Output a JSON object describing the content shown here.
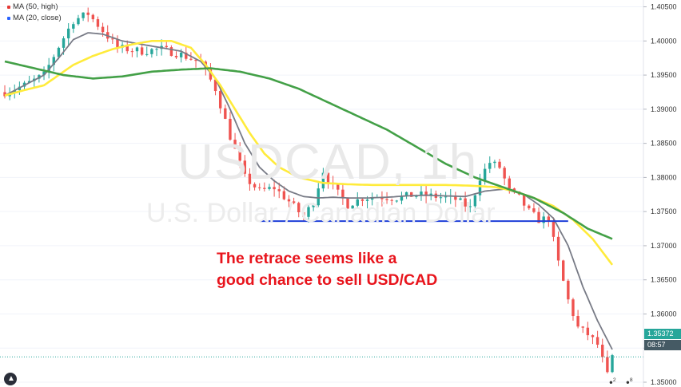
{
  "legend": {
    "items": [
      {
        "label": "MA (50, high)",
        "color": "#e53935"
      },
      {
        "label": "MA (20, close)",
        "color": "#2962ff"
      }
    ]
  },
  "watermark": {
    "symbol": "USDCAD, 1h",
    "description": "U.S. Dollar / Canadian Dollar"
  },
  "annotation": {
    "line1": "The retrace seems like a",
    "line2": "good chance to sell USD/CAD"
  },
  "price_tags": {
    "last_price": "1.35372",
    "countdown": "08:57"
  },
  "notifications": {
    "a": "2",
    "b": "8"
  },
  "colors": {
    "up": "#26a69a",
    "down": "#ef5350",
    "ma_gray": "#787b86",
    "ma_yellow": "#ffeb3b",
    "ma_green": "#43a047",
    "support_line": "#1e3fd8",
    "annotation": "#e8141c",
    "last_price_tag": "#26a69a",
    "countdown_tag": "#455a64"
  },
  "chart_data": {
    "type": "line",
    "title": "",
    "ylim": [
      1.3493,
      1.406
    ],
    "y_ticks": [
      "1.40500",
      "1.40000",
      "1.39500",
      "1.39000",
      "1.38500",
      "1.38000",
      "1.37500",
      "1.37000",
      "1.36500",
      "1.36000",
      "1.35500",
      "1.35000"
    ],
    "y_tick_values": [
      1.405,
      1.4,
      1.395,
      1.39,
      1.385,
      1.38,
      1.375,
      1.37,
      1.365,
      1.36,
      1.355,
      1.35
    ],
    "last_price": 1.35372,
    "support_level": 1.3736,
    "support_x_range": [
      52,
      115
    ],
    "x_count": 125,
    "price_anchors": [
      [
        0,
        1.3925
      ],
      [
        4,
        1.3935
      ],
      [
        8,
        1.395
      ],
      [
        11,
        1.3992
      ],
      [
        14,
        1.403
      ],
      [
        17,
        1.404
      ],
      [
        20,
        1.4015
      ],
      [
        23,
        1.399
      ],
      [
        28,
        1.3985
      ],
      [
        32,
        1.3988
      ],
      [
        36,
        1.398
      ],
      [
        40,
        1.3968
      ],
      [
        43,
        1.393
      ],
      [
        46,
        1.386
      ],
      [
        49,
        1.38
      ],
      [
        52,
        1.378
      ],
      [
        55,
        1.3785
      ],
      [
        58,
        1.3765
      ],
      [
        61,
        1.3742
      ],
      [
        63,
        1.3765
      ],
      [
        65,
        1.381
      ],
      [
        67,
        1.3785
      ],
      [
        70,
        1.376
      ],
      [
        73,
        1.377
      ],
      [
        76,
        1.3772
      ],
      [
        80,
        1.377
      ],
      [
        84,
        1.3775
      ],
      [
        88,
        1.3772
      ],
      [
        92,
        1.3768
      ],
      [
        95,
        1.3755
      ],
      [
        97,
        1.38
      ],
      [
        99,
        1.3822
      ],
      [
        101,
        1.3815
      ],
      [
        103,
        1.378
      ],
      [
        105,
        1.377
      ],
      [
        107,
        1.375
      ],
      [
        109,
        1.3738
      ],
      [
        111,
        1.374
      ],
      [
        113,
        1.3675
      ],
      [
        115,
        1.362
      ],
      [
        117,
        1.358
      ],
      [
        119,
        1.357
      ],
      [
        121,
        1.3555
      ],
      [
        123,
        1.351
      ],
      [
        124,
        1.3537
      ]
    ],
    "series": [
      {
        "name": "MA (20, close)",
        "color": "#787b86",
        "points": [
          [
            0,
            1.392
          ],
          [
            4,
            1.3935
          ],
          [
            8,
            1.395
          ],
          [
            11,
            1.3975
          ],
          [
            14,
            1.4002
          ],
          [
            17,
            1.4012
          ],
          [
            20,
            1.401
          ],
          [
            24,
            1.4
          ],
          [
            28,
            1.3995
          ],
          [
            32,
            1.399
          ],
          [
            36,
            1.3985
          ],
          [
            40,
            1.397
          ],
          [
            43,
            1.3945
          ],
          [
            46,
            1.39
          ],
          [
            49,
            1.385
          ],
          [
            52,
            1.3815
          ],
          [
            55,
            1.3795
          ],
          [
            58,
            1.378
          ],
          [
            61,
            1.3772
          ],
          [
            64,
            1.377
          ],
          [
            67,
            1.3771
          ],
          [
            70,
            1.377
          ],
          [
            74,
            1.377
          ],
          [
            78,
            1.3771
          ],
          [
            82,
            1.3773
          ],
          [
            86,
            1.3774
          ],
          [
            90,
            1.3773
          ],
          [
            94,
            1.3772
          ],
          [
            98,
            1.378
          ],
          [
            102,
            1.3783
          ],
          [
            106,
            1.3775
          ],
          [
            109,
            1.376
          ],
          [
            112,
            1.374
          ],
          [
            115,
            1.37
          ],
          [
            118,
            1.364
          ],
          [
            121,
            1.359
          ],
          [
            124,
            1.3548
          ]
        ]
      },
      {
        "name": "MA (50, high)",
        "color": "#ffeb3b",
        "points": [
          [
            0,
            1.392
          ],
          [
            4,
            1.3928
          ],
          [
            8,
            1.3935
          ],
          [
            11,
            1.395
          ],
          [
            14,
            1.3965
          ],
          [
            18,
            1.3978
          ],
          [
            22,
            1.3988
          ],
          [
            26,
            1.3995
          ],
          [
            30,
            1.4
          ],
          [
            34,
            1.4
          ],
          [
            38,
            1.399
          ],
          [
            41,
            1.3965
          ],
          [
            44,
            1.3935
          ],
          [
            47,
            1.39
          ],
          [
            50,
            1.3865
          ],
          [
            53,
            1.3835
          ],
          [
            56,
            1.3815
          ],
          [
            60,
            1.38
          ],
          [
            65,
            1.3792
          ],
          [
            70,
            1.379
          ],
          [
            75,
            1.3789
          ],
          [
            80,
            1.3789
          ],
          [
            85,
            1.3789
          ],
          [
            90,
            1.3789
          ],
          [
            95,
            1.3788
          ],
          [
            100,
            1.3786
          ],
          [
            104,
            1.378
          ],
          [
            108,
            1.377
          ],
          [
            112,
            1.3758
          ],
          [
            116,
            1.3738
          ],
          [
            120,
            1.371
          ],
          [
            124,
            1.3672
          ]
        ]
      },
      {
        "name": "",
        "color": "#43a047",
        "points": [
          [
            0,
            1.397
          ],
          [
            6,
            1.396
          ],
          [
            12,
            1.395
          ],
          [
            18,
            1.3945
          ],
          [
            24,
            1.3948
          ],
          [
            30,
            1.3955
          ],
          [
            36,
            1.3958
          ],
          [
            42,
            1.396
          ],
          [
            48,
            1.3955
          ],
          [
            54,
            1.3945
          ],
          [
            60,
            1.393
          ],
          [
            66,
            1.391
          ],
          [
            72,
            1.389
          ],
          [
            78,
            1.387
          ],
          [
            84,
            1.3845
          ],
          [
            90,
            1.382
          ],
          [
            96,
            1.38
          ],
          [
            102,
            1.3785
          ],
          [
            108,
            1.377
          ],
          [
            114,
            1.3748
          ],
          [
            119,
            1.3725
          ],
          [
            124,
            1.371
          ]
        ]
      }
    ]
  }
}
